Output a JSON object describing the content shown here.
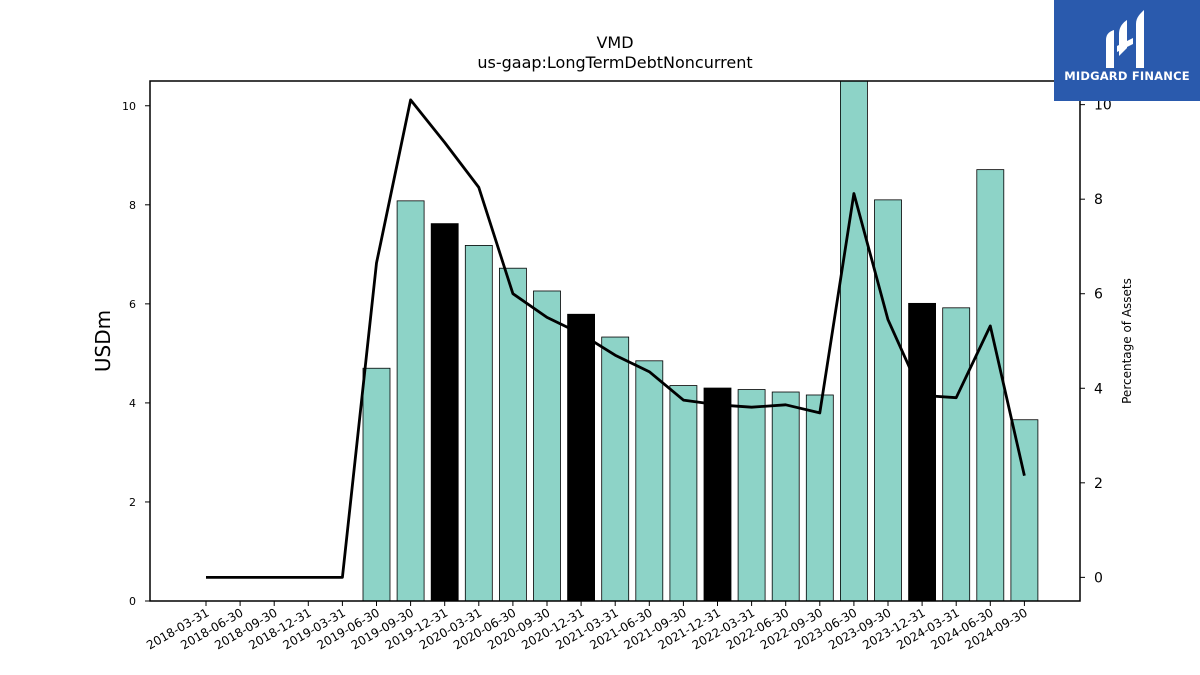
{
  "logo": {
    "text": "MIDGARD FINANCE",
    "icon": "midgard-logo-icon",
    "background": "#2a5aad"
  },
  "chart_data": {
    "type": "bar",
    "title": "VMD",
    "subtitle": "us-gaap:LongTermDebtNoncurrent",
    "ylabel": "USDm",
    "y2label": "Percentage of Assets",
    "ylim": [
      0,
      10.5
    ],
    "y2lim": [
      -0.5,
      10.5
    ],
    "yticks": [
      0,
      2,
      4,
      6,
      8,
      10
    ],
    "y2ticks": [
      0,
      2,
      4,
      6,
      8,
      10
    ],
    "categories": [
      "2018-03-31",
      "2018-06-30",
      "2018-09-30",
      "2018-12-31",
      "2019-03-31",
      "2019-06-30",
      "2019-09-30",
      "2019-12-31",
      "2020-03-31",
      "2020-06-30",
      "2020-09-30",
      "2020-12-31",
      "2021-03-31",
      "2021-06-30",
      "2021-09-30",
      "2021-12-31",
      "2022-03-31",
      "2022-06-30",
      "2022-09-30",
      "2023-06-30",
      "2023-09-30",
      "2023-12-31",
      "2024-03-31",
      "2024-06-30",
      "2024-09-30"
    ],
    "series": [
      {
        "name": "",
        "type": "bar",
        "axis": "left",
        "values": [
          null,
          null,
          null,
          null,
          null,
          4.7,
          8.08,
          7.62,
          7.18,
          6.72,
          6.26,
          5.79,
          5.33,
          4.85,
          4.35,
          4.3,
          4.27,
          4.22,
          4.16,
          10.5,
          8.1,
          6.01,
          5.92,
          8.71,
          3.66
        ]
      },
      {
        "name": "",
        "type": "line",
        "axis": "right",
        "values": [
          0,
          0,
          0,
          0,
          0,
          6.65,
          10.1,
          9.2,
          8.25,
          6.0,
          5.5,
          5.15,
          4.7,
          4.35,
          3.75,
          3.65,
          3.6,
          3.65,
          3.48,
          8.12,
          5.45,
          3.85,
          3.8,
          5.32,
          2.15
        ]
      }
    ],
    "year_end_highlight": [
      "2019-12-31",
      "2020-12-31",
      "2021-12-31",
      "2023-12-31"
    ],
    "colors": {
      "bar": "#8dd3c7",
      "bar_highlight": "#000000",
      "line": "#000000",
      "axis": "#000000"
    },
    "grid": false,
    "legend": "none"
  }
}
